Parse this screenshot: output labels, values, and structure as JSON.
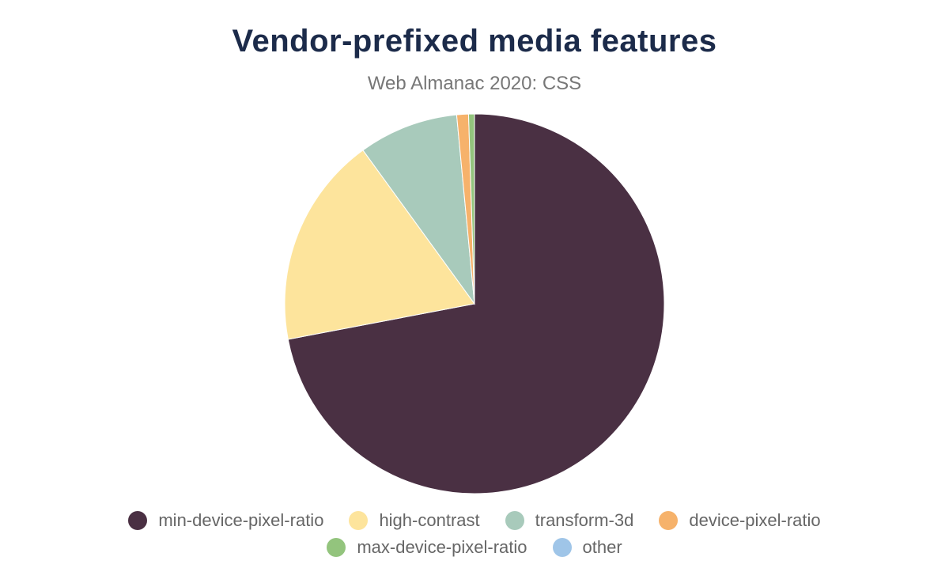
{
  "chart_data": {
    "type": "pie",
    "title": "Vendor-prefixed media features",
    "subtitle": "Web Almanac 2020: CSS",
    "categories": [
      "min-device-pixel-ratio",
      "high-contrast",
      "transform-3d",
      "device-pixel-ratio",
      "max-device-pixel-ratio",
      "other"
    ],
    "values": [
      72,
      18,
      8.5,
      1,
      0.5,
      0
    ],
    "colors": [
      "#4a3043",
      "#fde49c",
      "#a8cabb",
      "#f6b26b",
      "#93c47d",
      "#9fc5e8"
    ]
  }
}
